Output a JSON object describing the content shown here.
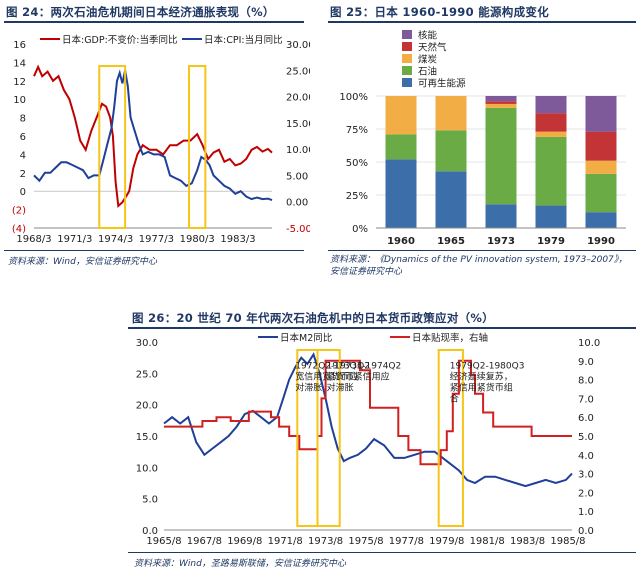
{
  "fig24": {
    "caption": "图 24：两次石油危机期间日本经济通胀表现（%）",
    "source": "资料来源：Wind，安信证券研究中心"
  },
  "fig25": {
    "caption": "图 25：日本 1960-1990 能源构成变化",
    "source": "资料来源：《Dynamics of the PV innovation system, 1973–2007》，安信证券研究中心"
  },
  "fig26": {
    "caption": "图 26：20 世纪 70 年代两次石油危机中的日本货币政策应对（%）",
    "source": "资料来源：Wind，圣路易斯联储，安信证券研究中心"
  },
  "chart_data": [
    {
      "id": "fig24",
      "type": "line",
      "title": "两次石油危机期间日本经济通胀表现（%）",
      "x_tick_labels": [
        "1968/3",
        "1971/3",
        "1974/3",
        "1977/3",
        "1980/3",
        "1983/3"
      ],
      "x_range": [
        1968.0,
        1985.5
      ],
      "left_axis": {
        "range": [
          -4,
          16
        ],
        "ticks": [
          "(4)",
          "(2)",
          "0",
          "2",
          "4",
          "6",
          "8",
          "10",
          "12",
          "14",
          "16"
        ]
      },
      "right_axis": {
        "range": [
          -5,
          30
        ],
        "ticks": [
          "-5.00",
          "0.00",
          "5.00",
          "10.00",
          "15.00",
          "20.00",
          "25.00",
          "30.00"
        ]
      },
      "series": [
        {
          "name": "日本:GDP:不变价:当季同比",
          "axis": "left",
          "color": "#c00000",
          "x": [
            1968.0,
            1968.3,
            1968.6,
            1969.0,
            1969.4,
            1969.8,
            1970.2,
            1970.6,
            1971.0,
            1971.4,
            1971.8,
            1972.2,
            1972.6,
            1973.0,
            1973.3,
            1973.6,
            1973.8,
            1974.0,
            1974.2,
            1974.5,
            1974.8,
            1975.0,
            1975.3,
            1975.6,
            1976.0,
            1976.5,
            1977.0,
            1977.5,
            1978.0,
            1978.5,
            1979.0,
            1979.5,
            1980.0,
            1980.4,
            1980.8,
            1981.2,
            1981.6,
            1982.0,
            1982.4,
            1982.8,
            1983.2,
            1983.6,
            1984.0,
            1984.4,
            1984.8,
            1985.2,
            1985.5
          ],
          "y": [
            12.5,
            13.5,
            12.5,
            13,
            12,
            12.5,
            11,
            10,
            8,
            5.5,
            4.5,
            6.5,
            8,
            9.5,
            9.2,
            8,
            6,
            1,
            -1.6,
            -1.2,
            -0.5,
            0,
            2.5,
            4,
            5,
            4.5,
            4.5,
            4,
            5,
            5,
            5.5,
            5.5,
            6.2,
            5,
            3.5,
            4.2,
            4.5,
            3.2,
            3.5,
            2.8,
            3,
            3.5,
            4.5,
            4.8,
            4.3,
            4.6,
            4.2
          ]
        },
        {
          "name": "日本:CPI:当月同比",
          "axis": "right",
          "color": "#1f3f99",
          "x": [
            1968.0,
            1968.4,
            1968.8,
            1969.2,
            1969.6,
            1970.0,
            1970.4,
            1970.8,
            1971.2,
            1971.6,
            1972.0,
            1972.4,
            1972.8,
            1973.1,
            1973.4,
            1973.7,
            1973.9,
            1974.1,
            1974.3,
            1974.5,
            1974.7,
            1974.9,
            1975.1,
            1975.4,
            1975.7,
            1976.0,
            1976.4,
            1976.8,
            1977.2,
            1977.6,
            1978.0,
            1978.4,
            1978.8,
            1979.2,
            1979.6,
            1980.0,
            1980.3,
            1980.6,
            1980.9,
            1981.2,
            1981.6,
            1982.0,
            1982.4,
            1982.8,
            1983.2,
            1983.6,
            1984.0,
            1984.4,
            1984.8,
            1985.2,
            1985.5
          ],
          "y": [
            5,
            4,
            5.5,
            5.5,
            6.5,
            7.5,
            7.5,
            7,
            6.5,
            6,
            4.5,
            5,
            5,
            8,
            11,
            14,
            18,
            23,
            24.5,
            22.5,
            25,
            22,
            16,
            13.5,
            11,
            9,
            9.5,
            9,
            9,
            8.5,
            5,
            4.5,
            4,
            3,
            3.5,
            6,
            8.5,
            8,
            7,
            5,
            4,
            3,
            2.5,
            1.5,
            2,
            1,
            0.5,
            0.8,
            0.5,
            0.6,
            0.3
          ]
        }
      ],
      "highlight_ranges": [
        [
          1972.8,
          1974.7
        ],
        [
          1979.4,
          1980.6
        ]
      ]
    },
    {
      "id": "fig25",
      "type": "bar",
      "stacked": true,
      "percent": true,
      "title": "日本 1960-1990 能源构成变化",
      "categories": [
        "1960",
        "1965",
        "1973",
        "1979",
        "1990"
      ],
      "y_ticks": [
        "0%",
        "25%",
        "50%",
        "75%",
        "100%"
      ],
      "series": [
        {
          "name": "可再生能源",
          "color": "#3c6faa",
          "values": [
            52,
            43,
            18,
            17,
            12
          ]
        },
        {
          "name": "石油",
          "color": "#6aab45",
          "values": [
            19,
            31,
            73,
            52,
            29
          ]
        },
        {
          "name": "煤炭",
          "color": "#f2ad45",
          "values": [
            29,
            26,
            3,
            4,
            10
          ]
        },
        {
          "name": "天然气",
          "color": "#c33436",
          "values": [
            0,
            0,
            2,
            14,
            22
          ]
        },
        {
          "name": "核能",
          "color": "#7e5a9b",
          "values": [
            0,
            0,
            4,
            13,
            27
          ]
        }
      ]
    },
    {
      "id": "fig26",
      "type": "line",
      "title": "20 世纪 70 年代两次石油危机中的日本货币政策应对（%）",
      "x_tick_labels": [
        "1965/8",
        "1967/8",
        "1969/8",
        "1971/8",
        "1973/8",
        "1975/8",
        "1977/8",
        "1979/8",
        "1981/8",
        "1983/8",
        "1985/8"
      ],
      "x_range": [
        1965.6,
        1985.8
      ],
      "left_axis": {
        "range": [
          0,
          30
        ],
        "ticks": [
          "0.0",
          "5.0",
          "10.0",
          "15.0",
          "20.0",
          "25.0",
          "30.0"
        ]
      },
      "right_axis": {
        "range": [
          0,
          10
        ],
        "ticks": [
          "0.0",
          "1.0",
          "2.0",
          "3.0",
          "4.0",
          "5.0",
          "6.0",
          "7.0",
          "8.0",
          "9.0",
          "10.0"
        ]
      },
      "series": [
        {
          "name": "日本M2同比",
          "axis": "left",
          "color": "#1f3f99",
          "x": [
            1965.6,
            1966.0,
            1966.4,
            1966.8,
            1967.2,
            1967.6,
            1968.0,
            1968.4,
            1968.8,
            1969.2,
            1969.6,
            1970.0,
            1970.4,
            1970.8,
            1971.2,
            1971.5,
            1971.8,
            1972.1,
            1972.4,
            1972.7,
            1973.0,
            1973.3,
            1973.6,
            1973.9,
            1974.2,
            1974.5,
            1974.8,
            1975.2,
            1975.6,
            1976.0,
            1976.5,
            1977.0,
            1977.5,
            1978.0,
            1978.5,
            1979.0,
            1979.4,
            1979.8,
            1980.2,
            1980.6,
            1981.0,
            1981.5,
            1982.0,
            1982.5,
            1983.0,
            1983.5,
            1984.0,
            1984.5,
            1985.0,
            1985.5,
            1985.8
          ],
          "y": [
            17,
            18,
            17,
            18,
            14,
            12,
            13,
            14,
            15,
            16.5,
            18.5,
            19,
            18,
            17,
            18,
            21,
            24,
            26,
            27.5,
            26.5,
            28,
            25,
            21,
            16.5,
            13,
            11,
            11.5,
            12,
            13,
            14.5,
            13.5,
            11.5,
            11.5,
            12,
            12.5,
            12.5,
            11.5,
            10.5,
            9.5,
            8,
            7.5,
            8.5,
            8.5,
            8,
            7.5,
            7,
            7.5,
            8,
            7.5,
            8,
            9
          ]
        },
        {
          "name": "日本贴现率，右轴",
          "axis": "right",
          "color": "#d02020",
          "x": [
            1965.6,
            1967.5,
            1967.5,
            1968.2,
            1968.2,
            1968.9,
            1968.9,
            1969.8,
            1969.8,
            1970.9,
            1970.9,
            1971.3,
            1971.3,
            1971.8,
            1971.8,
            1972.3,
            1972.3,
            1973.2,
            1973.2,
            1973.4,
            1973.4,
            1973.6,
            1973.6,
            1975.3,
            1975.3,
            1975.8,
            1975.8,
            1977.2,
            1977.2,
            1977.7,
            1977.7,
            1978.3,
            1978.3,
            1979.3,
            1979.3,
            1979.6,
            1979.6,
            1979.9,
            1979.9,
            1980.2,
            1980.2,
            1980.8,
            1980.8,
            1981.0,
            1981.0,
            1981.4,
            1981.4,
            1981.9,
            1981.9,
            1983.8,
            1983.8,
            1985.8
          ],
          "y": [
            5.5,
            5.5,
            5.8,
            5.8,
            6.0,
            6.0,
            5.8,
            5.8,
            6.3,
            6.3,
            6.0,
            6.0,
            5.5,
            5.5,
            5.0,
            5.0,
            4.3,
            4.3,
            5.0,
            5.0,
            7.0,
            7.0,
            9.0,
            9.0,
            8.5,
            8.5,
            6.5,
            6.5,
            5.0,
            5.0,
            4.25,
            4.25,
            3.5,
            3.5,
            4.25,
            4.25,
            5.25,
            5.25,
            7.25,
            7.25,
            9.0,
            9.0,
            8.25,
            8.25,
            7.25,
            7.25,
            6.25,
            6.25,
            5.5,
            5.5,
            5.0,
            5.0
          ]
        }
      ],
      "highlight_ranges": [
        [
          1972.2,
          1973.2
        ],
        [
          1973.2,
          1974.3
        ],
        [
          1979.2,
          1980.4
        ]
      ],
      "annotations": [
        {
          "x": 1972.2,
          "y": 28,
          "lines": [
            "1972Q2-1973Q2",
            "宽信用宽货币应",
            "对滞胀"
          ]
        },
        {
          "x": 1973.5,
          "y": 28,
          "lines": [
            "1973Q3-1974Q2",
            "紧货币紧信用应",
            "对滞胀"
          ]
        },
        {
          "x": 1979.6,
          "y": 28,
          "lines": [
            "1979Q2-1980Q3",
            "经济延续复苏，",
            "紧信用紧货币组",
            "合"
          ]
        }
      ]
    }
  ]
}
